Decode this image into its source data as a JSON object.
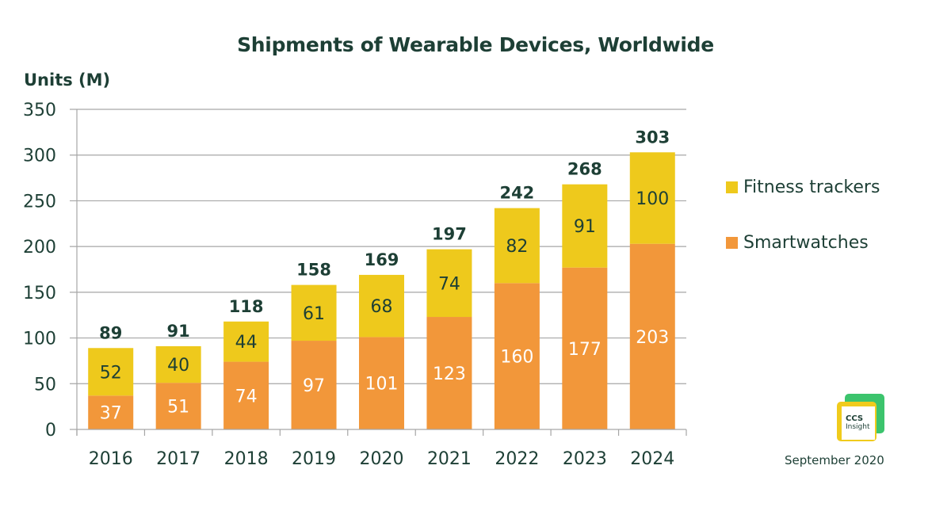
{
  "chart_data": {
    "type": "bar",
    "stacked": true,
    "title": "Shipments of Wearable Devices, Worldwide",
    "ylabel": "Units (M)",
    "xlabel": "",
    "categories": [
      "2016",
      "2017",
      "2018",
      "2019",
      "2020",
      "2021",
      "2022",
      "2023",
      "2024"
    ],
    "series": [
      {
        "name": "Smartwatches",
        "color": "#f2973a",
        "label_color": "#ffffff",
        "values": [
          37,
          51,
          74,
          97,
          101,
          123,
          160,
          177,
          203
        ]
      },
      {
        "name": "Fitness trackers",
        "color": "#eec91c",
        "label_color": "#1d3f35",
        "values": [
          52,
          40,
          44,
          61,
          68,
          74,
          82,
          91,
          100
        ]
      }
    ],
    "totals": [
      89,
      91,
      118,
      158,
      169,
      197,
      242,
      268,
      303
    ],
    "ylim": [
      0,
      350
    ],
    "yticks": [
      0,
      50,
      100,
      150,
      200,
      250,
      300,
      350
    ],
    "grid": true,
    "legend": {
      "placement": "right",
      "entries": [
        "Fitness trackers",
        "Smartwatches"
      ]
    }
  },
  "footer": {
    "logo_line1": "CCS",
    "logo_line2": "Insight",
    "date": "September 2020"
  },
  "colors": {
    "text": "#1d3f35",
    "grid": "#a6a6a6",
    "smartwatches": "#f2973a",
    "fitness_trackers": "#eec91c",
    "logo_green": "#3cc46d",
    "logo_yellow": "#f0cb1c"
  }
}
